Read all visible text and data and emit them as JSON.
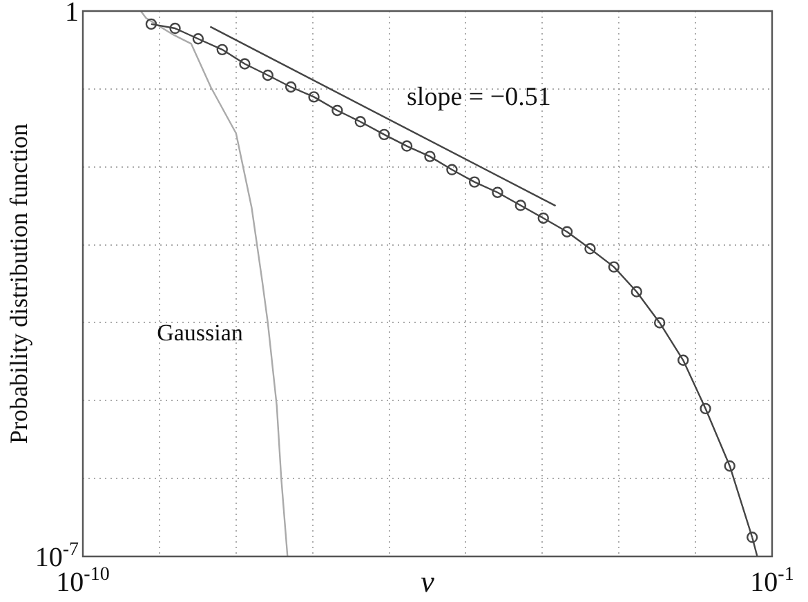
{
  "chart_data": {
    "type": "line",
    "xlabel": "ν",
    "ylabel": "Probability distribution function",
    "log": "xy",
    "grid": true,
    "legend": false,
    "xlim": [
      1e-10,
      0.1
    ],
    "ylim": [
      1e-07,
      1
    ],
    "xticks": [
      {
        "value": 1e-10,
        "label": "10$^{-10}$"
      },
      {
        "value": 1e-09,
        "label": null
      },
      {
        "value": 1e-08,
        "label": null
      },
      {
        "value": 1e-07,
        "label": null
      },
      {
        "value": 1e-06,
        "label": null
      },
      {
        "value": 1e-05,
        "label": null
      },
      {
        "value": 0.0001,
        "label": null
      },
      {
        "value": 0.001,
        "label": null
      },
      {
        "value": 0.01,
        "label": null
      },
      {
        "value": 0.1,
        "label": "10$^{-1}$"
      }
    ],
    "yticks": [
      {
        "value": 1e-07,
        "label": "10$^{-7}$"
      },
      {
        "value": 1e-06,
        "label": null
      },
      {
        "value": 1e-05,
        "label": null
      },
      {
        "value": 0.0001,
        "label": null
      },
      {
        "value": 0.001,
        "label": null
      },
      {
        "value": 0.01,
        "label": null
      },
      {
        "value": 0.1,
        "label": null
      },
      {
        "value": 1,
        "label": "1"
      }
    ],
    "series": [
      {
        "type": "line",
        "color": "#444444",
        "marker": "circle",
        "x": [
          7.8e-10,
          1.6e-09,
          3.2e-09,
          6.6e-09,
          1.3e-08,
          2.6e-08,
          5.2e-08,
          1.04e-07,
          2.1e-07,
          4.2e-07,
          8.6e-07,
          1.7e-06,
          3.4e-06,
          6.6e-06,
          1.3e-05,
          2.6e-05,
          5.2e-05,
          0.000103,
          0.00021,
          0.00042,
          0.00086,
          0.0017,
          0.0034,
          0.0069,
          0.0135,
          0.028,
          0.055
        ],
        "values": [
          0.68,
          0.6,
          0.44,
          0.32,
          0.21,
          0.15,
          0.106,
          0.079,
          0.053,
          0.038,
          0.026,
          0.0185,
          0.0136,
          0.0092,
          0.0064,
          0.0047,
          0.0032,
          0.0022,
          0.00147,
          0.00089,
          0.00052,
          0.00025,
          0.0001,
          3.3e-05,
          7.9e-06,
          1.45e-06,
          1.76e-07
        ]
      },
      {
        "type": "line",
        "color": "#444444",
        "marker": "none",
        "x": [
          0.055,
          0.064
        ],
        "values": [
          1.76e-07,
          1e-07
        ]
      },
      {
        "type": "line",
        "name": "Gaussian",
        "color": "#aaaaaa",
        "marker": "none",
        "x": [
          5.7e-10,
          6.7e-10,
          1.5e-09,
          2.6e-09,
          4.7e-09,
          1e-08,
          1.6e-08,
          2.2e-08,
          2.6e-08,
          3.4e-08,
          3.9e-08,
          4.7e-08
        ],
        "values": [
          1,
          0.81,
          0.5,
          0.38,
          0.105,
          0.027,
          0.003,
          0.00034,
          0.0001,
          8.7e-06,
          9.9e-07,
          1e-07
        ]
      },
      {
        "type": "line",
        "color": "#444444",
        "marker": "none",
        "x": [
          4.6e-09,
          0.000149
        ],
        "values": [
          0.63,
          0.00316
        ]
      }
    ],
    "annotations": [
      "slope = −0.51"
    ]
  }
}
